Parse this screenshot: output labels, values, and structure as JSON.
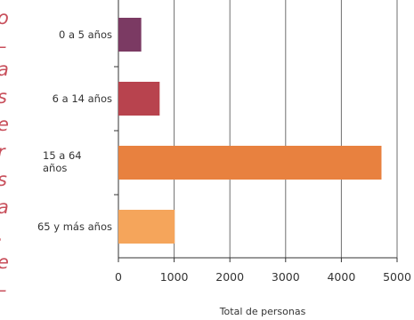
{
  "side_text": [
    "o",
    "–",
    "a",
    "s",
    "e",
    "r",
    "s",
    "a",
    ".",
    "e",
    "–"
  ],
  "chart_data": {
    "type": "bar",
    "orientation": "horizontal",
    "categories": [
      "0 a 5 años",
      "6 a 14 años",
      "15 a 64 años",
      "65 y más años"
    ],
    "category_label_lines": [
      [
        "0 a 5 años"
      ],
      [
        "6 a 14 años"
      ],
      [
        "15 a 64",
        "años"
      ],
      [
        "65 y más años"
      ]
    ],
    "values": [
      410,
      740,
      4720,
      1010
    ],
    "colors": [
      "#7b3a63",
      "#b8434e",
      "#e8813f",
      "#f5a55b"
    ],
    "xlabel": "Total de personas",
    "ylabel": "",
    "xlim": [
      0,
      5000
    ],
    "x_ticks": [
      0,
      1000,
      2000,
      3000,
      4000,
      5000
    ],
    "x_tick_labels": [
      "0",
      "1000",
      "2000",
      "3000",
      "4000",
      "5000"
    ],
    "grid": true
  }
}
